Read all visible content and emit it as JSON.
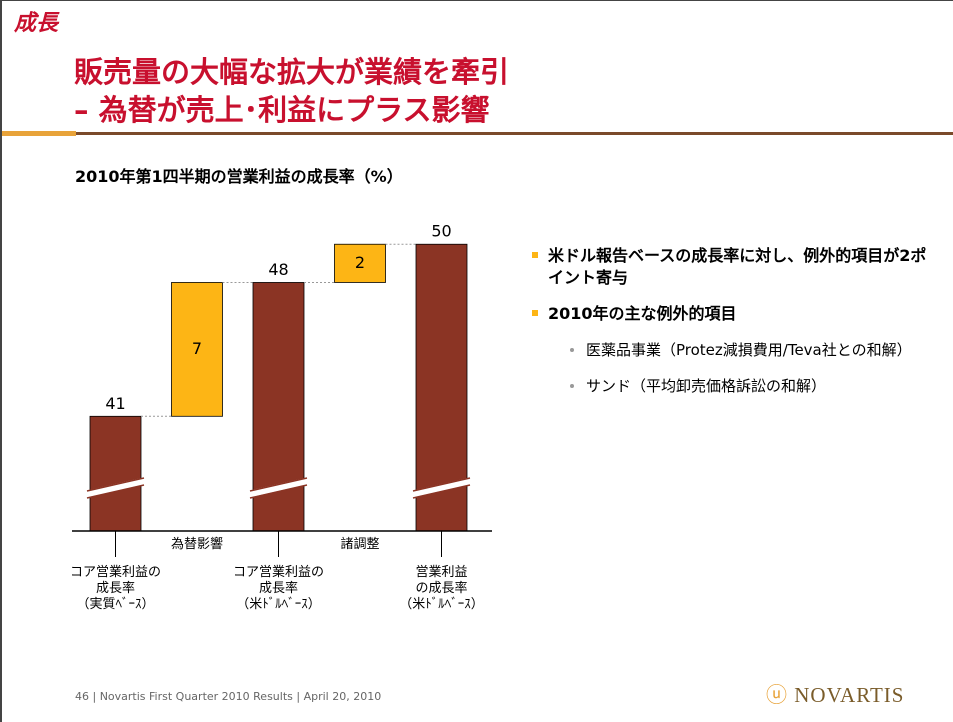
{
  "header": {
    "tag": "成長",
    "title_lines": [
      "販売量の大幅な拡大が業績を牽引",
      "– 為替が売上･利益にプラス影響"
    ]
  },
  "chart_data": {
    "type": "waterfall",
    "title": "2010年第1四半期の営業利益の成長率（%）",
    "categories": [
      "コア営業利益の\n成長率\n（実質ﾍﾞｰｽ）",
      "為替影響",
      "コア営業利益の\n成長率\n（米ﾄﾞﾙﾍﾞｰｽ）",
      "諸調整",
      "営業利益\nの成長率\n（米ﾄﾞﾙﾍﾞｰｽ）"
    ],
    "values": [
      41,
      7,
      48,
      2,
      50
    ],
    "measure": [
      "total",
      "relative",
      "total",
      "relative",
      "total"
    ],
    "colors": {
      "total": "#8b3424",
      "relative": "#fdb515"
    },
    "ylim": [
      35,
      52
    ],
    "axis_break": true
  },
  "bullets": [
    {
      "text": "米ドル報告ベースの成長率に対し、例外的項目が2ポイント寄与",
      "sub": []
    },
    {
      "text": "2010年の主な例外的項目",
      "sub": [
        "医薬品事業（Protez減損費用/Teva社との和解）",
        "サンド（平均卸売価格訴訟の和解）"
      ]
    }
  ],
  "footer": "46 |  Novartis First Quarter 2010 Results  |  April 20, 2010",
  "logo": "NOVARTIS"
}
